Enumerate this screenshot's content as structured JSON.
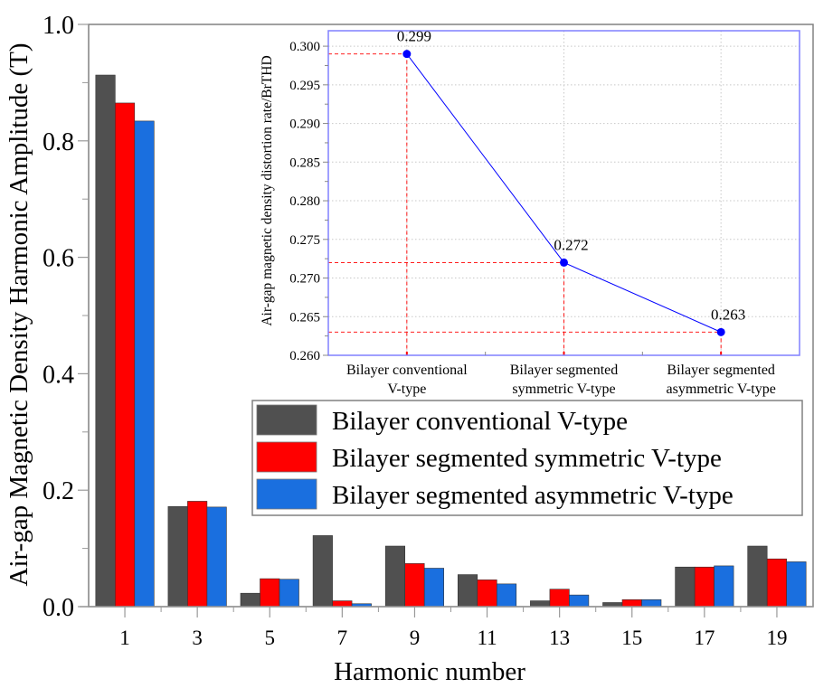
{
  "chart_data": [
    {
      "type": "bar",
      "title": "",
      "xlabel": "Harmonic number",
      "ylabel": "Air-gap Magnetic Density Harmonic Amplitude (T)",
      "ylim": [
        0,
        1.0
      ],
      "yticks": [
        "0.0",
        "0.2",
        "0.4",
        "0.6",
        "0.8",
        "1.0"
      ],
      "ytick_values": [
        0,
        0.2,
        0.4,
        0.6,
        0.8,
        1.0
      ],
      "categories": [
        "1",
        "3",
        "5",
        "7",
        "9",
        "11",
        "13",
        "15",
        "17",
        "19"
      ],
      "series": [
        {
          "name": "Bilayer conventional V-type",
          "color": "#505050",
          "values": [
            0.913,
            0.172,
            0.023,
            0.122,
            0.104,
            0.055,
            0.01,
            0.007,
            0.068,
            0.104
          ]
        },
        {
          "name": "Bilayer segmented symmetric V-type",
          "color": "#ff0000",
          "values": [
            0.865,
            0.181,
            0.048,
            0.01,
            0.074,
            0.046,
            0.03,
            0.012,
            0.068,
            0.082
          ]
        },
        {
          "name": "Bilayer segmented asymmetric V-type",
          "color": "#1a6fdf",
          "values": [
            0.834,
            0.171,
            0.047,
            0.005,
            0.066,
            0.039,
            0.02,
            0.012,
            0.07,
            0.077
          ]
        }
      ],
      "grid": false,
      "legend": "lower-right"
    },
    {
      "type": "line",
      "title": "",
      "xlabel": "",
      "ylabel": "Air-gap magnetic density distortion rate/BrTHD",
      "ylim": [
        0.26,
        0.302
      ],
      "yticks": [
        "0.260",
        "0.265",
        "0.270",
        "0.275",
        "0.280",
        "0.285",
        "0.290",
        "0.295",
        "0.300"
      ],
      "ytick_values": [
        0.26,
        0.265,
        0.27,
        0.275,
        0.28,
        0.285,
        0.29,
        0.295,
        0.3
      ],
      "categories": [
        [
          "Bilayer conventional",
          "V-type"
        ],
        [
          "Bilayer segmented",
          "symmetric V-type"
        ],
        [
          "Bilayer segmented",
          "asymmetric V-type"
        ]
      ],
      "values": [
        0.299,
        0.272,
        0.263
      ],
      "data_labels": [
        "0.299",
        "0.272",
        "0.263"
      ],
      "line_color": "#0000ff",
      "guide_color": "#ff0000",
      "grid": true,
      "placement": "inset top-right"
    }
  ]
}
